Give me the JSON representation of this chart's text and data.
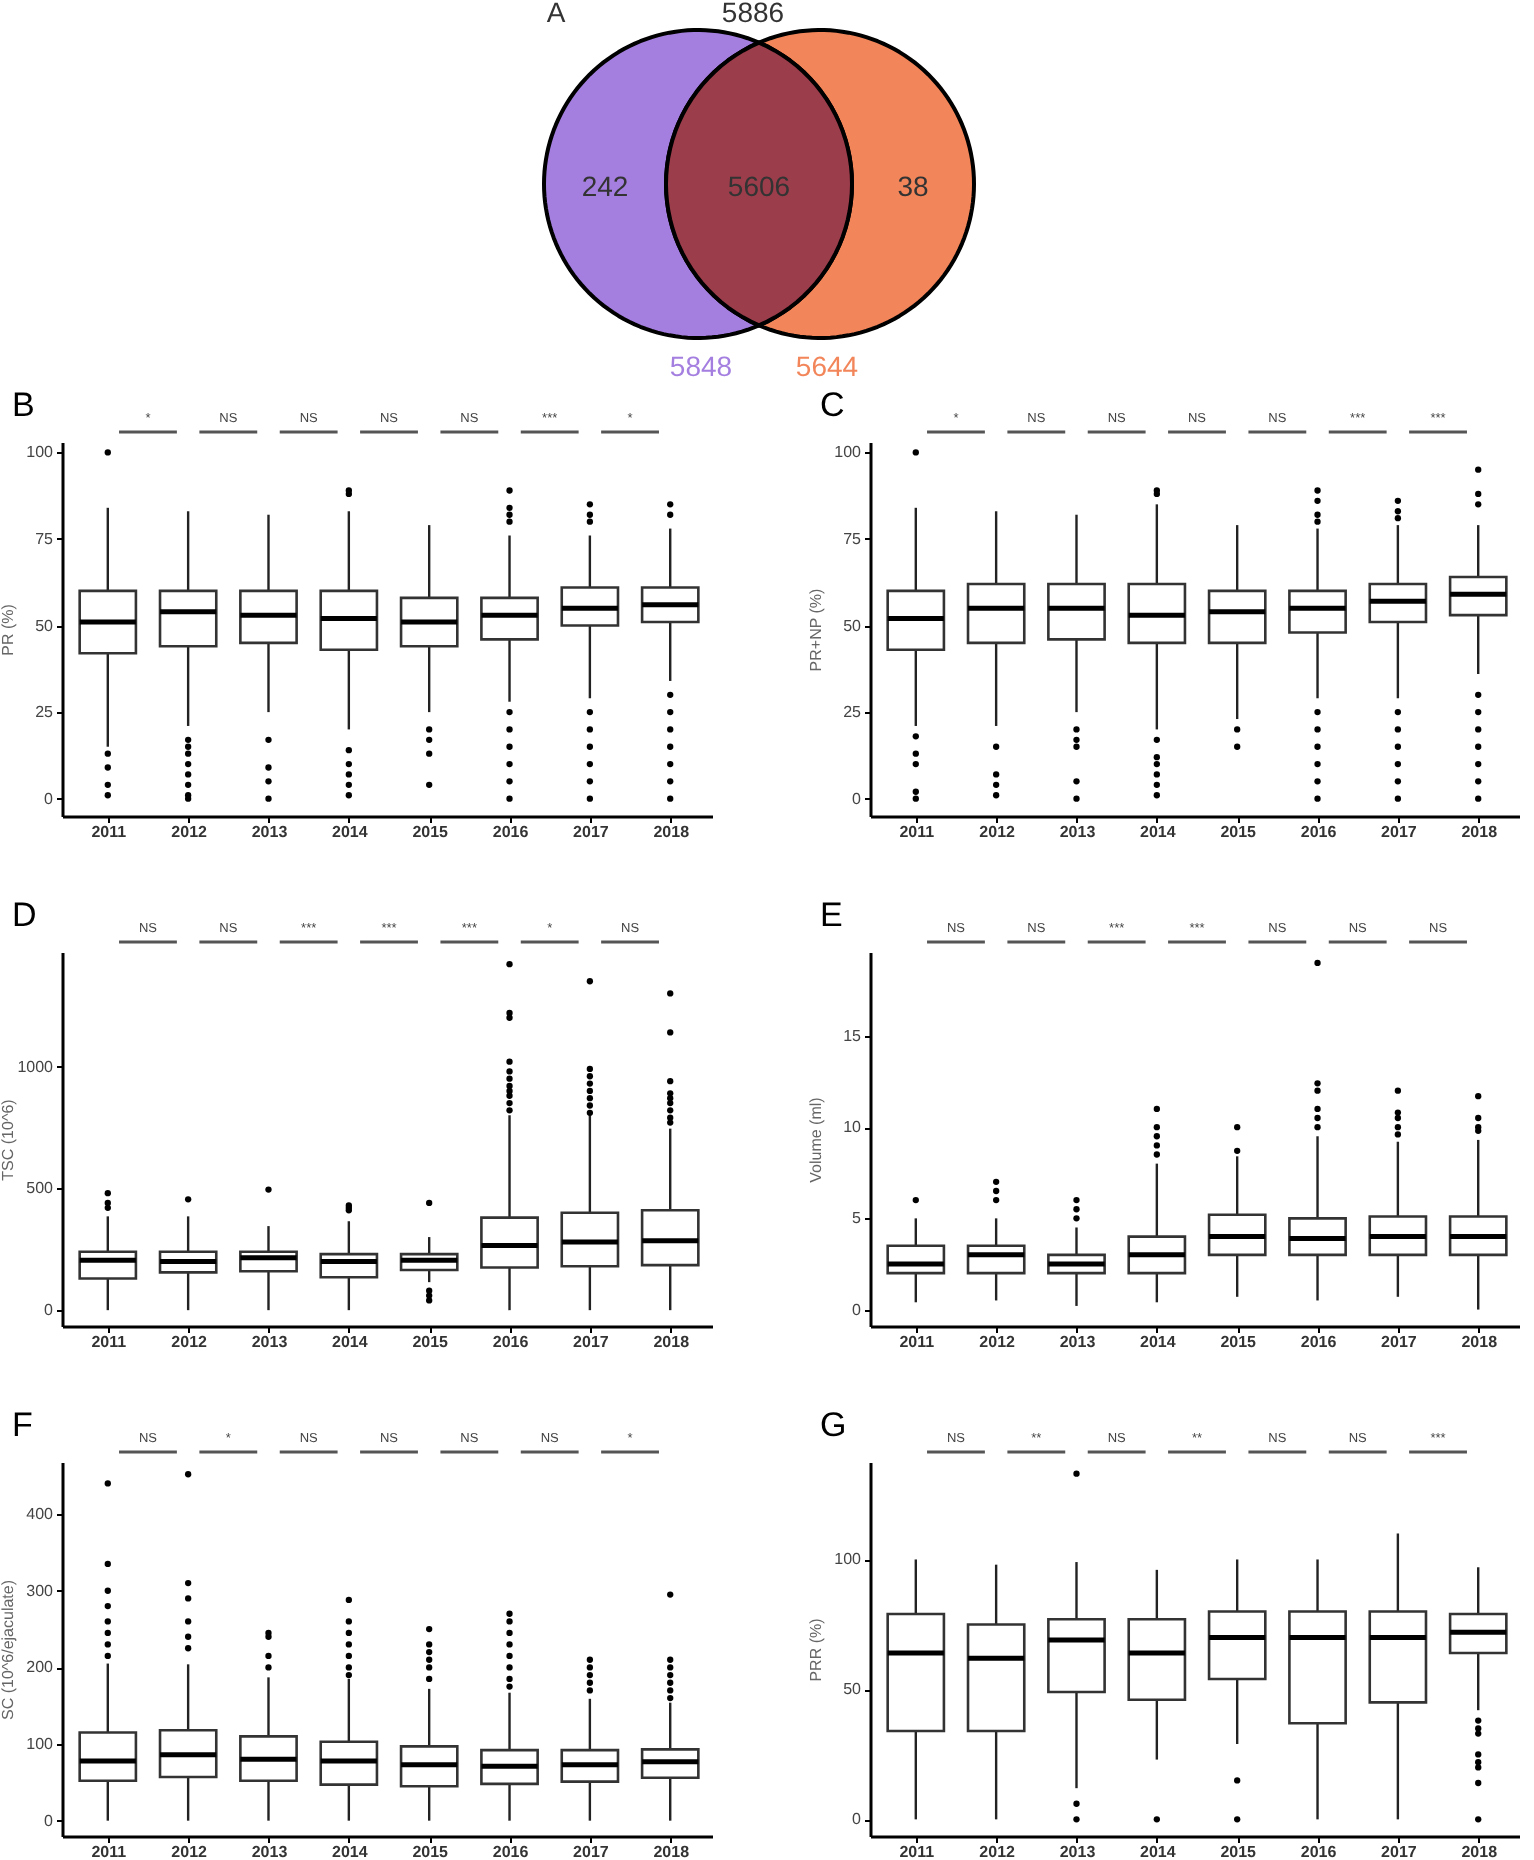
{
  "chart_data": [
    {
      "type": "other",
      "title": "A",
      "annotations": [
        "5886",
        "242",
        "5606",
        "38"
      ],
      "series": [
        {
          "name": "5848",
          "color": "#a47fe0"
        },
        {
          "name": "5644",
          "color": "#f2865a"
        }
      ],
      "colors": [
        "#9b3d4b"
      ]
    },
    {
      "type": "box",
      "title": "B",
      "ylabel": "PR  (%)",
      "categories": [
        "2011",
        "2012",
        "2013",
        "2014",
        "2015",
        "2016",
        "2017",
        "2018"
      ],
      "ylim": [
        -5,
        103
      ],
      "yticks": [
        0,
        25,
        50,
        75,
        100
      ],
      "annotations": [
        "*",
        "NS",
        "NS",
        "NS",
        "NS",
        "***",
        "*"
      ],
      "boxes": [
        {
          "low": 15,
          "q1": 42,
          "median": 51,
          "q3": 60,
          "high": 84,
          "outliers": [
            100,
            13,
            9,
            4,
            1
          ]
        },
        {
          "low": 21,
          "q1": 44,
          "median": 54,
          "q3": 60,
          "high": 83,
          "outliers": [
            17,
            15,
            13,
            10,
            7,
            4,
            1,
            0
          ]
        },
        {
          "low": 25,
          "q1": 45,
          "median": 53,
          "q3": 60,
          "high": 82,
          "outliers": [
            17,
            9,
            5,
            0
          ]
        },
        {
          "low": 20,
          "q1": 43,
          "median": 52,
          "q3": 60,
          "high": 83,
          "outliers": [
            89,
            88,
            14,
            10,
            7,
            4,
            1
          ]
        },
        {
          "low": 25,
          "q1": 44,
          "median": 51,
          "q3": 58,
          "high": 79,
          "outliers": [
            20,
            17,
            13,
            4
          ]
        },
        {
          "low": 28,
          "q1": 46,
          "median": 53,
          "q3": 58,
          "high": 76,
          "outliers": [
            89,
            84,
            82,
            80,
            25,
            20,
            15,
            10,
            5,
            0
          ]
        },
        {
          "low": 29,
          "q1": 50,
          "median": 55,
          "q3": 61,
          "high": 76,
          "outliers": [
            85,
            82,
            80,
            25,
            20,
            15,
            10,
            5,
            0
          ]
        },
        {
          "low": 34,
          "q1": 51,
          "median": 56,
          "q3": 61,
          "high": 78,
          "outliers": [
            85,
            82,
            30,
            25,
            20,
            15,
            10,
            5,
            0
          ]
        }
      ]
    },
    {
      "type": "box",
      "title": "C",
      "ylabel": "PR+NP (%)",
      "categories": [
        "2011",
        "2012",
        "2013",
        "2014",
        "2015",
        "2016",
        "2017",
        "2018"
      ],
      "ylim": [
        -5,
        103
      ],
      "yticks": [
        0,
        25,
        50,
        75,
        100
      ],
      "annotations": [
        "*",
        "NS",
        "NS",
        "NS",
        "NS",
        "***",
        "***"
      ],
      "boxes": [
        {
          "low": 21,
          "q1": 43,
          "median": 52,
          "q3": 60,
          "high": 84,
          "outliers": [
            100,
            18,
            13,
            10,
            2,
            0
          ]
        },
        {
          "low": 21,
          "q1": 45,
          "median": 55,
          "q3": 62,
          "high": 83,
          "outliers": [
            15,
            7,
            4,
            1
          ]
        },
        {
          "low": 25,
          "q1": 46,
          "median": 55,
          "q3": 62,
          "high": 82,
          "outliers": [
            20,
            17,
            15,
            5,
            0
          ]
        },
        {
          "low": 20,
          "q1": 45,
          "median": 53,
          "q3": 62,
          "high": 85,
          "outliers": [
            89,
            88,
            17,
            12,
            10,
            7,
            4,
            1
          ]
        },
        {
          "low": 23,
          "q1": 45,
          "median": 54,
          "q3": 60,
          "high": 79,
          "outliers": [
            20,
            15
          ]
        },
        {
          "low": 29,
          "q1": 48,
          "median": 55,
          "q3": 60,
          "high": 78,
          "outliers": [
            89,
            86,
            82,
            80,
            25,
            20,
            15,
            10,
            5,
            0
          ]
        },
        {
          "low": 29,
          "q1": 51,
          "median": 57,
          "q3": 62,
          "high": 79,
          "outliers": [
            86,
            83,
            81,
            25,
            20,
            15,
            10,
            5,
            0
          ]
        },
        {
          "low": 36,
          "q1": 53,
          "median": 59,
          "q3": 64,
          "high": 79,
          "outliers": [
            95,
            88,
            85,
            30,
            25,
            20,
            15,
            10,
            5,
            0
          ]
        }
      ]
    },
    {
      "type": "box",
      "title": "D",
      "ylabel": "TSC  (10^6)",
      "categories": [
        "2011",
        "2012",
        "2013",
        "2014",
        "2015",
        "2016",
        "2017",
        "2018"
      ],
      "ylim": [
        -65,
        1470
      ],
      "yticks": [
        0,
        500,
        1000
      ],
      "annotations": [
        "NS",
        "NS",
        "***",
        "***",
        "***",
        "*",
        "NS"
      ],
      "boxes": [
        {
          "low": 0,
          "q1": 130,
          "median": 205,
          "q3": 240,
          "high": 385,
          "outliers": [
            480,
            440,
            420
          ]
        },
        {
          "low": 0,
          "q1": 155,
          "median": 200,
          "q3": 240,
          "high": 385,
          "outliers": [
            455
          ]
        },
        {
          "low": 0,
          "q1": 160,
          "median": 215,
          "q3": 240,
          "high": 345,
          "outliers": [
            495
          ]
        },
        {
          "low": 0,
          "q1": 135,
          "median": 200,
          "q3": 230,
          "high": 365,
          "outliers": [
            430,
            420,
            410
          ]
        },
        {
          "low": 115,
          "q1": 165,
          "median": 205,
          "q3": 230,
          "high": 300,
          "outliers": [
            440,
            80,
            60,
            40
          ]
        },
        {
          "low": 0,
          "q1": 175,
          "median": 265,
          "q3": 380,
          "high": 800,
          "outliers": [
            1420,
            1220,
            1200,
            1020,
            980,
            950,
            920,
            900,
            880,
            850,
            820
          ]
        },
        {
          "low": 0,
          "q1": 180,
          "median": 280,
          "q3": 400,
          "high": 800,
          "outliers": [
            1350,
            990,
            960,
            930,
            900,
            870,
            840,
            810
          ]
        },
        {
          "low": 0,
          "q1": 185,
          "median": 285,
          "q3": 410,
          "high": 745,
          "outliers": [
            1300,
            1140,
            940,
            890,
            870,
            850,
            820,
            790,
            770
          ]
        }
      ]
    },
    {
      "type": "box",
      "title": "E",
      "ylabel": "Volume (ml)",
      "categories": [
        "2011",
        "2012",
        "2013",
        "2014",
        "2015",
        "2016",
        "2017",
        "2018"
      ],
      "ylim": [
        -0.9,
        19.6
      ],
      "yticks": [
        0,
        5,
        10,
        15
      ],
      "annotations": [
        "NS",
        "NS",
        "***",
        "***",
        "NS",
        "NS",
        "NS"
      ],
      "boxes": [
        {
          "low": 0.4,
          "q1": 2,
          "median": 2.5,
          "q3": 3.5,
          "high": 5,
          "outliers": [
            6
          ]
        },
        {
          "low": 0.5,
          "q1": 2,
          "median": 3,
          "q3": 3.5,
          "high": 5,
          "outliers": [
            7,
            6.5,
            6
          ]
        },
        {
          "low": 0.2,
          "q1": 2,
          "median": 2.5,
          "q3": 3,
          "high": 4.5,
          "outliers": [
            6,
            5.5,
            5
          ]
        },
        {
          "low": 0.4,
          "q1": 2,
          "median": 3,
          "q3": 4,
          "high": 8,
          "outliers": [
            11,
            10,
            9.5,
            9,
            8.5
          ]
        },
        {
          "low": 0.7,
          "q1": 3,
          "median": 4,
          "q3": 5.2,
          "high": 8.4,
          "outliers": [
            10,
            8.7
          ]
        },
        {
          "low": 0.5,
          "q1": 3,
          "median": 3.9,
          "q3": 5,
          "high": 9.5,
          "outliers": [
            19,
            12.4,
            12,
            11,
            10.5,
            10
          ]
        },
        {
          "low": 0.7,
          "q1": 3,
          "median": 4,
          "q3": 5.1,
          "high": 9.2,
          "outliers": [
            12,
            10.8,
            10.5,
            10,
            9.6
          ]
        },
        {
          "low": 0,
          "q1": 3,
          "median": 4,
          "q3": 5.1,
          "high": 9.3,
          "outliers": [
            11.7,
            10.5,
            10,
            9.8
          ]
        }
      ]
    },
    {
      "type": "box",
      "title": "F",
      "ylabel": "SC  (10^6/ejaculate)",
      "categories": [
        "2011",
        "2012",
        "2013",
        "2014",
        "2015",
        "2016",
        "2017",
        "2018"
      ],
      "ylim": [
        -20,
        468
      ],
      "yticks": [
        0,
        100,
        200,
        300,
        400
      ],
      "annotations": [
        "NS",
        "*",
        "NS",
        "NS",
        "NS",
        "NS",
        "*"
      ],
      "boxes": [
        {
          "low": 0,
          "q1": 52,
          "median": 78,
          "q3": 115,
          "high": 205,
          "outliers": [
            440,
            335,
            300,
            280,
            260,
            245,
            230,
            215
          ]
        },
        {
          "low": 0,
          "q1": 57,
          "median": 86,
          "q3": 118,
          "high": 204,
          "outliers": [
            452,
            310,
            290,
            260,
            240,
            225
          ]
        },
        {
          "low": 0,
          "q1": 52,
          "median": 80,
          "q3": 110,
          "high": 187,
          "outliers": [
            245,
            240,
            215,
            200
          ]
        },
        {
          "low": 0,
          "q1": 47,
          "median": 78,
          "q3": 103,
          "high": 185,
          "outliers": [
            288,
            260,
            245,
            230,
            215,
            200,
            190
          ]
        },
        {
          "low": 0,
          "q1": 45,
          "median": 73,
          "q3": 97,
          "high": 172,
          "outliers": [
            250,
            230,
            220,
            210,
            200,
            185
          ]
        },
        {
          "low": 0,
          "q1": 48,
          "median": 71,
          "q3": 92,
          "high": 167,
          "outliers": [
            270,
            260,
            245,
            230,
            215,
            200,
            185,
            175
          ]
        },
        {
          "low": 0,
          "q1": 51,
          "median": 73,
          "q3": 92,
          "high": 159,
          "outliers": [
            210,
            200,
            190,
            180,
            170
          ]
        },
        {
          "low": 0,
          "q1": 56,
          "median": 77,
          "q3": 93,
          "high": 154,
          "outliers": [
            295,
            210,
            200,
            190,
            180,
            170,
            160
          ]
        }
      ]
    },
    {
      "type": "box",
      "title": "G",
      "ylabel": "PRR (%)",
      "categories": [
        "2011",
        "2012",
        "2013",
        "2014",
        "2015",
        "2016",
        "2017",
        "2018"
      ],
      "ylim": [
        -6.4,
        137.5
      ],
      "yticks": [
        0,
        50,
        100
      ],
      "annotations": [
        "NS",
        "**",
        "NS",
        "**",
        "NS",
        "NS",
        "***"
      ],
      "boxes": [
        {
          "low": 0,
          "q1": 34,
          "median": 64,
          "q3": 79,
          "high": 100
        },
        {
          "low": 0,
          "q1": 34,
          "median": 62,
          "q3": 75,
          "high": 98
        },
        {
          "low": 12,
          "q1": 49,
          "median": 69,
          "q3": 77,
          "high": 99,
          "outliers": [
            133,
            6,
            0
          ]
        },
        {
          "low": 23,
          "q1": 46,
          "median": 64,
          "q3": 77,
          "high": 96,
          "outliers": [
            0
          ]
        },
        {
          "low": 29,
          "q1": 54,
          "median": 70,
          "q3": 80,
          "high": 100,
          "outliers": [
            15,
            0
          ]
        },
        {
          "low": 0,
          "q1": 37,
          "median": 70,
          "q3": 80,
          "high": 100
        },
        {
          "low": 0,
          "q1": 45,
          "median": 70,
          "q3": 80,
          "high": 110
        },
        {
          "low": 42,
          "q1": 64,
          "median": 72,
          "q3": 79,
          "high": 97,
          "outliers": [
            38,
            35,
            33,
            25,
            22,
            20,
            14,
            0
          ]
        }
      ]
    }
  ]
}
